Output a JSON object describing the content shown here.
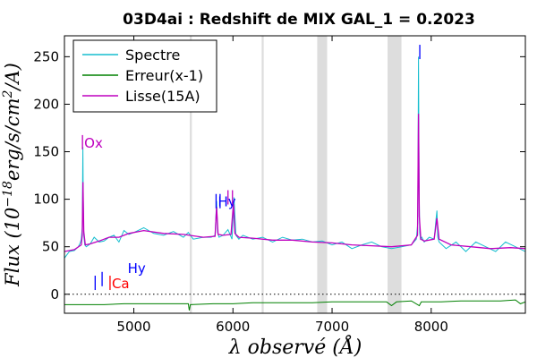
{
  "chart_data": {
    "type": "line",
    "title": "03D4ai : Redshift de MIX GAL_1 = 0.2023",
    "xlabel": "λ observé (Å)",
    "ylabel": "Flux (10^-18 erg/s/cm²/A)",
    "ylabel_parts": {
      "prefix": "Flux (10",
      "exp": "−18",
      "mid": "erg/s/cm",
      "exp2": "2",
      "suffix": "/A)"
    },
    "xlim": [
      4300,
      8950
    ],
    "ylim": [
      -20,
      272
    ],
    "x_ticks": [
      5000,
      6000,
      7000,
      8000
    ],
    "y_ticks": [
      0,
      50,
      100,
      150,
      200,
      250
    ],
    "x_tick_labels": [
      "5000",
      "6000",
      "7000",
      "8000"
    ],
    "y_tick_labels": [
      "0",
      "50",
      "100",
      "150",
      "200",
      "250"
    ],
    "legend": {
      "placement": "top-left",
      "entries": [
        {
          "name": "Spectre",
          "color": "#17becf"
        },
        {
          "name": "Erreur(x-1)",
          "color": "#008000"
        },
        {
          "name": "Lisse(15A)",
          "color": "#bf00bf"
        }
      ]
    },
    "series": [
      {
        "name": "Spectre",
        "color": "#17becf",
        "x": [
          4300,
          4350,
          4400,
          4440,
          4460,
          4470,
          4480,
          4486,
          4490,
          4495,
          4505,
          4520,
          4560,
          4600,
          4650,
          4700,
          4750,
          4800,
          4850,
          4900,
          4950,
          5000,
          5100,
          5200,
          5300,
          5400,
          5500,
          5550,
          5600,
          5700,
          5780,
          5820,
          5835,
          5845,
          5860,
          5900,
          5950,
          5990,
          6010,
          6030,
          6060,
          6100,
          6200,
          6300,
          6400,
          6500,
          6600,
          6700,
          6800,
          6900,
          7000,
          7100,
          7200,
          7300,
          7400,
          7500,
          7600,
          7700,
          7800,
          7850,
          7865,
          7872,
          7878,
          7884,
          7892,
          7905,
          7930,
          7980,
          8030,
          8050,
          8058,
          8066,
          8080,
          8150,
          8250,
          8350,
          8450,
          8550,
          8650,
          8750,
          8850,
          8950
        ],
        "y": [
          38,
          45,
          46,
          50,
          54,
          58,
          70,
          155,
          100,
          62,
          52,
          50,
          53,
          60,
          55,
          56,
          60,
          62,
          55,
          67,
          63,
          65,
          70,
          64,
          62,
          66,
          60,
          65,
          58,
          60,
          60,
          62,
          98,
          65,
          60,
          62,
          68,
          58,
          102,
          62,
          58,
          62,
          58,
          60,
          55,
          60,
          57,
          58,
          55,
          56,
          52,
          55,
          48,
          52,
          55,
          50,
          48,
          50,
          52,
          58,
          75,
          250,
          110,
          65,
          58,
          60,
          55,
          60,
          58,
          80,
          88,
          60,
          55,
          48,
          55,
          45,
          55,
          50,
          45,
          55,
          50,
          45
        ]
      },
      {
        "name": "Erreur(x-1)",
        "color": "#008000",
        "x": [
          4300,
          4500,
          4700,
          4900,
          5100,
          5300,
          5550,
          5560,
          5570,
          5800,
          6000,
          6200,
          6500,
          6800,
          7000,
          7300,
          7550,
          7600,
          7650,
          7800,
          7880,
          7900,
          8100,
          8300,
          8500,
          8700,
          8850,
          8900,
          8950
        ],
        "y": [
          -11,
          -11,
          -11,
          -10,
          -10,
          -10,
          -10,
          -17,
          -11,
          -10,
          -10,
          -9,
          -9,
          -9,
          -8,
          -8,
          -8,
          -12,
          -8,
          -7,
          -12,
          -8,
          -8,
          -7,
          -7,
          -7,
          -6,
          -10,
          -8
        ]
      },
      {
        "name": "Lisse(15A)",
        "color": "#bf00bf",
        "x": [
          4300,
          4400,
          4470,
          4480,
          4487,
          4495,
          4510,
          4560,
          4650,
          4750,
          4850,
          4950,
          5100,
          5300,
          5500,
          5700,
          5820,
          5835,
          5850,
          5900,
          5980,
          6005,
          6020,
          6060,
          6200,
          6400,
          6600,
          6800,
          7000,
          7200,
          7400,
          7600,
          7800,
          7862,
          7872,
          7880,
          7895,
          7930,
          8030,
          8058,
          8080,
          8200,
          8400,
          8600,
          8800,
          8950
        ],
        "y": [
          45,
          47,
          52,
          62,
          118,
          66,
          52,
          53,
          56,
          60,
          60,
          64,
          67,
          64,
          63,
          60,
          61,
          92,
          63,
          62,
          63,
          95,
          64,
          60,
          59,
          57,
          57,
          55,
          54,
          52,
          51,
          50,
          52,
          62,
          190,
          82,
          58,
          56,
          58,
          80,
          58,
          52,
          50,
          48,
          49,
          48
        ]
      }
    ],
    "zero_line": {
      "y": 0,
      "style": "dotted"
    },
    "shaded_bands": [
      {
        "x0": 5565,
        "x1": 5585,
        "color": "#dddddd"
      },
      {
        "x0": 6290,
        "x1": 6310,
        "color": "#dddddd"
      },
      {
        "x0": 6850,
        "x1": 6950,
        "color": "#dddddd"
      },
      {
        "x0": 7560,
        "x1": 7700,
        "color": "#dddddd"
      }
    ],
    "line_markers": [
      {
        "label": "Ox",
        "x": 4482,
        "y": 160,
        "color": "#bf00bf",
        "tick": true
      },
      {
        "label": "Hy",
        "x": 5830,
        "y": 98,
        "color": "#0000ff",
        "tick": true
      },
      {
        "label": "",
        "x": 5870,
        "y": 98,
        "color": "#0000ff",
        "tick": true
      },
      {
        "label": "",
        "x": 5950,
        "y": 102,
        "color": "#bf00bf",
        "tick": true
      },
      {
        "label": "",
        "x": 5995,
        "y": 102,
        "color": "#bf00bf",
        "tick": true
      },
      {
        "label": "",
        "x": 7885,
        "y": 255,
        "color": "#0000ff",
        "tick": true
      },
      {
        "label": "Hy",
        "x": 4920,
        "y": 28,
        "color": "#0000ff",
        "tick": false
      },
      {
        "label": "",
        "x": 4610,
        "y": 12,
        "color": "#0000ff",
        "tick": true
      },
      {
        "label": "",
        "x": 4680,
        "y": 16,
        "color": "#0000ff",
        "tick": true
      },
      {
        "label": "Ca",
        "x": 4760,
        "y": 12,
        "color": "#ff0000",
        "tick": true
      }
    ]
  }
}
